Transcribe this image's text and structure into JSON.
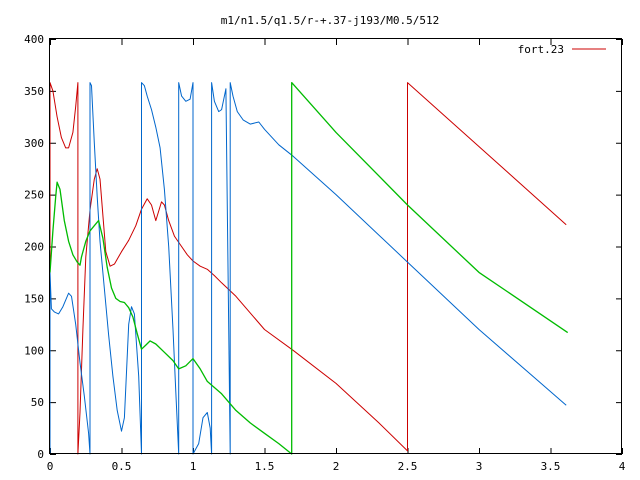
{
  "chart_data": {
    "type": "line",
    "title": "m1/n1.5/q1.5/r-+.37-j193/M0.5/512",
    "xlabel": "",
    "ylabel": "",
    "xlim": [
      0,
      4
    ],
    "ylim": [
      0,
      400
    ],
    "x_ticks": [
      0,
      0.5,
      1,
      1.5,
      2,
      2.5,
      3,
      3.5,
      4
    ],
    "x_tick_labels": [
      "0",
      "0.5",
      "1",
      "1.5",
      "2",
      "2.5",
      "3",
      "3.5",
      "4"
    ],
    "y_ticks": [
      0,
      50,
      100,
      150,
      200,
      250,
      300,
      350,
      400
    ],
    "y_tick_labels": [
      "0",
      "50",
      "100",
      "150",
      "200",
      "250",
      "300",
      "350",
      "400"
    ],
    "grid": false,
    "legend_position": "top-right",
    "legend": [
      {
        "label": "fort.23",
        "color": "#cc0000"
      }
    ],
    "series": [
      {
        "name": "fort.23",
        "color": "#cc0000",
        "points": [
          [
            0.0,
            0
          ],
          [
            0.0,
            358
          ],
          [
            0.02,
            350
          ],
          [
            0.05,
            325
          ],
          [
            0.08,
            305
          ],
          [
            0.11,
            295
          ],
          [
            0.13,
            295
          ],
          [
            0.16,
            310
          ],
          [
            0.18,
            335
          ],
          [
            0.195,
            358
          ],
          [
            0.195,
            0
          ],
          [
            0.21,
            40
          ],
          [
            0.23,
            120
          ],
          [
            0.25,
            190
          ],
          [
            0.28,
            235
          ],
          [
            0.31,
            265
          ],
          [
            0.33,
            275
          ],
          [
            0.35,
            265
          ],
          [
            0.37,
            230
          ],
          [
            0.39,
            195
          ],
          [
            0.42,
            181
          ],
          [
            0.45,
            183
          ],
          [
            0.5,
            195
          ],
          [
            0.55,
            206
          ],
          [
            0.6,
            220
          ],
          [
            0.64,
            236
          ],
          [
            0.68,
            246
          ],
          [
            0.71,
            240
          ],
          [
            0.74,
            225
          ],
          [
            0.78,
            243
          ],
          [
            0.8,
            240
          ],
          [
            0.83,
            225
          ],
          [
            0.87,
            210
          ],
          [
            0.91,
            202
          ],
          [
            0.96,
            192
          ],
          [
            1.0,
            186
          ],
          [
            1.05,
            181
          ],
          [
            1.1,
            178
          ],
          [
            1.15,
            172
          ],
          [
            1.2,
            165
          ],
          [
            1.3,
            152
          ],
          [
            1.5,
            120
          ],
          [
            1.7,
            100
          ],
          [
            2.0,
            68
          ],
          [
            2.3,
            30
          ],
          [
            2.5,
            3
          ],
          [
            2.5,
            358
          ],
          [
            3.61,
            221
          ]
        ]
      },
      {
        "color": "#0066cc",
        "points": [
          [
            0.0,
            0
          ],
          [
            0.0,
            175
          ],
          [
            0.01,
            140
          ],
          [
            0.03,
            137
          ],
          [
            0.06,
            135
          ],
          [
            0.09,
            142
          ],
          [
            0.13,
            155
          ],
          [
            0.15,
            152
          ],
          [
            0.18,
            125
          ],
          [
            0.21,
            88
          ],
          [
            0.24,
            56
          ],
          [
            0.27,
            20
          ],
          [
            0.28,
            0
          ],
          [
            0.28,
            358
          ],
          [
            0.29,
            355
          ],
          [
            0.31,
            300
          ],
          [
            0.33,
            248
          ],
          [
            0.35,
            205
          ],
          [
            0.38,
            160
          ],
          [
            0.41,
            115
          ],
          [
            0.44,
            75
          ],
          [
            0.47,
            42
          ],
          [
            0.5,
            22
          ],
          [
            0.52,
            35
          ],
          [
            0.55,
            125
          ],
          [
            0.57,
            142
          ],
          [
            0.59,
            135
          ],
          [
            0.62,
            75
          ],
          [
            0.64,
            0
          ],
          [
            0.64,
            358
          ],
          [
            0.66,
            355
          ],
          [
            0.68,
            345
          ],
          [
            0.71,
            332
          ],
          [
            0.74,
            315
          ],
          [
            0.77,
            295
          ],
          [
            0.8,
            255
          ],
          [
            0.83,
            200
          ],
          [
            0.86,
            120
          ],
          [
            0.88,
            60
          ],
          [
            0.9,
            0
          ],
          [
            0.9,
            358
          ],
          [
            0.92,
            345
          ],
          [
            0.95,
            340
          ],
          [
            0.98,
            342
          ],
          [
            1.0,
            358
          ],
          [
            1.0,
            0
          ],
          [
            1.04,
            10
          ],
          [
            1.07,
            35
          ],
          [
            1.1,
            40
          ],
          [
            1.12,
            25
          ],
          [
            1.13,
            0
          ],
          [
            1.13,
            358
          ],
          [
            1.15,
            340
          ],
          [
            1.18,
            330
          ],
          [
            1.2,
            332
          ],
          [
            1.23,
            352
          ],
          [
            1.26,
            0
          ],
          [
            1.26,
            358
          ],
          [
            1.28,
            345
          ],
          [
            1.31,
            330
          ],
          [
            1.35,
            322
          ],
          [
            1.4,
            318
          ],
          [
            1.46,
            320
          ],
          [
            1.5,
            313
          ],
          [
            1.6,
            298
          ],
          [
            1.7,
            287
          ],
          [
            2.0,
            250
          ],
          [
            2.5,
            185
          ],
          [
            3.0,
            120
          ],
          [
            3.61,
            47
          ]
        ]
      },
      {
        "color": "#00bb00",
        "points": [
          [
            0.0,
            175
          ],
          [
            0.02,
            215
          ],
          [
            0.04,
            248
          ],
          [
            0.05,
            262
          ],
          [
            0.07,
            255
          ],
          [
            0.1,
            225
          ],
          [
            0.13,
            205
          ],
          [
            0.16,
            192
          ],
          [
            0.19,
            185
          ],
          [
            0.21,
            182
          ],
          [
            0.22,
            190
          ],
          [
            0.25,
            205
          ],
          [
            0.28,
            215
          ],
          [
            0.31,
            220
          ],
          [
            0.34,
            225
          ],
          [
            0.37,
            208
          ],
          [
            0.4,
            180
          ],
          [
            0.43,
            160
          ],
          [
            0.46,
            150
          ],
          [
            0.49,
            147
          ],
          [
            0.52,
            146
          ],
          [
            0.55,
            141
          ],
          [
            0.58,
            132
          ],
          [
            0.61,
            116
          ],
          [
            0.64,
            101
          ],
          [
            0.67,
            105
          ],
          [
            0.7,
            109
          ],
          [
            0.74,
            106
          ],
          [
            0.8,
            98
          ],
          [
            0.86,
            90
          ],
          [
            0.9,
            82
          ],
          [
            0.95,
            85
          ],
          [
            1.0,
            92
          ],
          [
            1.05,
            82
          ],
          [
            1.1,
            70
          ],
          [
            1.2,
            58
          ],
          [
            1.3,
            42
          ],
          [
            1.4,
            30
          ],
          [
            1.5,
            20
          ],
          [
            1.6,
            10
          ],
          [
            1.69,
            0
          ],
          [
            1.69,
            358
          ],
          [
            2.0,
            310
          ],
          [
            2.5,
            240
          ],
          [
            3.0,
            175
          ],
          [
            3.62,
            117
          ]
        ]
      }
    ]
  }
}
